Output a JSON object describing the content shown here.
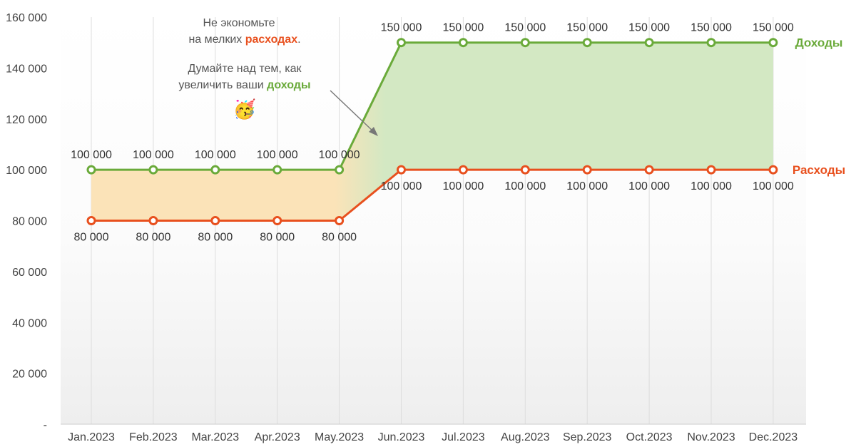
{
  "chart_data": {
    "type": "area",
    "categories": [
      "Jan.2023",
      "Feb.2023",
      "Mar.2023",
      "Apr.2023",
      "May.2023",
      "Jun.2023",
      "Jul.2023",
      "Aug.2023",
      "Sep.2023",
      "Oct.2023",
      "Nov.2023",
      "Dec.2023"
    ],
    "series": [
      {
        "name": "Доходы",
        "color": "#6aaa3a",
        "values": [
          100000,
          100000,
          100000,
          100000,
          100000,
          150000,
          150000,
          150000,
          150000,
          150000,
          150000,
          150000
        ],
        "labels": [
          "100 000",
          "100 000",
          "100 000",
          "100 000",
          "100 000",
          "150 000",
          "150 000",
          "150 000",
          "150 000",
          "150 000",
          "150 000",
          "150 000"
        ]
      },
      {
        "name": "Расходы",
        "color": "#e8501e",
        "values": [
          80000,
          80000,
          80000,
          80000,
          80000,
          100000,
          100000,
          100000,
          100000,
          100000,
          100000,
          100000
        ],
        "labels": [
          "80 000",
          "80 000",
          "80 000",
          "80 000",
          "80 000",
          "100 000",
          "100 000",
          "100 000",
          "100 000",
          "100 000",
          "100 000",
          "100 000"
        ]
      }
    ],
    "yticks": [
      0,
      20000,
      40000,
      60000,
      80000,
      100000,
      120000,
      140000,
      160000
    ],
    "ytick_labels": [
      "-",
      "20 000",
      "40 000",
      "60 000",
      "80 000",
      "100 000",
      "120 000",
      "140 000",
      "160 000"
    ],
    "ylim": [
      0,
      160000
    ],
    "legend_placement": "right, inline at line ends",
    "fill_between": {
      "deficit_color": "#fbe3b8",
      "surplus_color": "#d3e8c3"
    },
    "grid": "vertical"
  },
  "annotations": {
    "note1_line1": "Не экономьте",
    "note1_line2_plain": "на мелких ",
    "note1_line2_em": "расходах",
    "note1_line2_end": ".",
    "note2_line1": "Думайте над тем, как",
    "note2_line2_plain": "увеличить ваши ",
    "note2_line2_em": "доходы",
    "emoji": "🥳"
  }
}
